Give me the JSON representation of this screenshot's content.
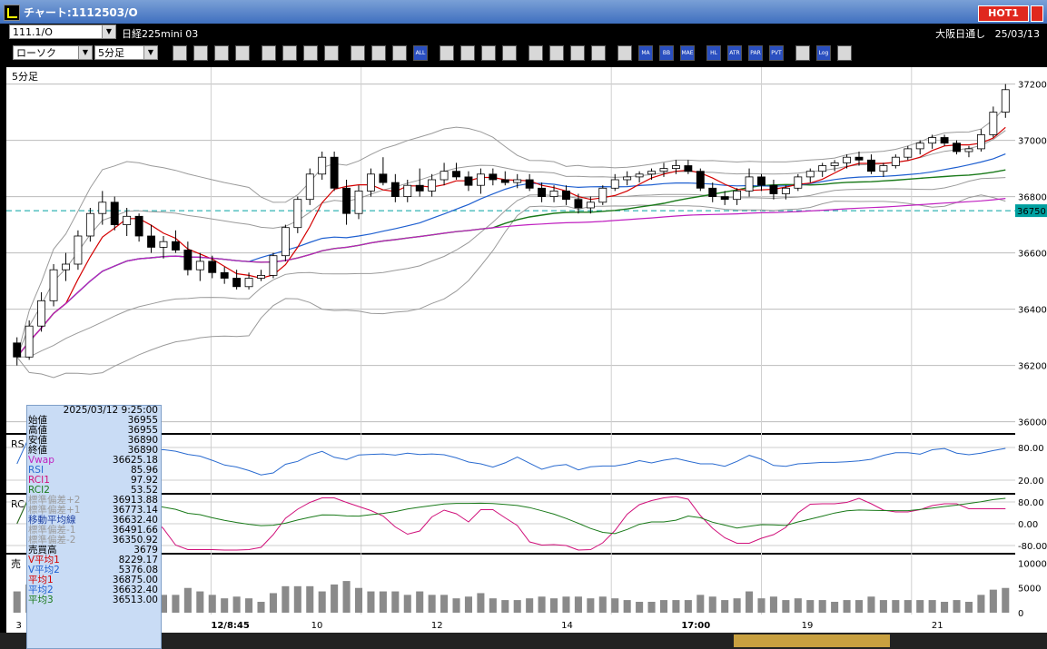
{
  "window": {
    "title": "チャート:1112503/O",
    "hot_label": "HOT1"
  },
  "header": {
    "symbol_code": "111.1/O",
    "symbol_name": "日経225mini 03",
    "market": "大阪日通し",
    "date": "25/03/13",
    "chart_type": "ローソク",
    "interval": "5分足"
  },
  "toolbar": {
    "buttons": [
      {
        "icon": "zoom-icon",
        "label": ""
      },
      {
        "icon": "crosshair-icon",
        "label": ""
      },
      {
        "icon": "pen-icon",
        "label": ""
      },
      {
        "icon": "line-tool-icon",
        "label": ""
      },
      {
        "icon": "cursor-icon",
        "label": ""
      },
      {
        "icon": "undo-icon",
        "label": ""
      },
      {
        "icon": "document-icon",
        "label": ""
      },
      {
        "icon": "trash-icon",
        "label": ""
      },
      {
        "icon": "candle-icon",
        "label": ""
      },
      {
        "icon": "candle-icon",
        "label": ""
      },
      {
        "icon": "candle-icon",
        "label": ""
      },
      {
        "icon": "all-icon",
        "label": "ALL"
      },
      {
        "icon": "gear-icon",
        "label": ""
      },
      {
        "icon": "wrench-icon",
        "label": ""
      },
      {
        "icon": "color-icon",
        "label": ""
      },
      {
        "icon": "print-icon",
        "label": ""
      },
      {
        "icon": "search-icon",
        "label": ""
      },
      {
        "icon": "chart-icon",
        "label": ""
      },
      {
        "icon": "fork-icon",
        "label": ""
      },
      {
        "icon": "info-icon",
        "label": ""
      },
      {
        "icon": "indicator-icon",
        "label": ""
      },
      {
        "icon": "indicator-icon",
        "label": "MA"
      },
      {
        "icon": "indicator-icon",
        "label": "BB"
      },
      {
        "icon": "indicator-icon",
        "label": "MAE"
      },
      {
        "icon": "indicator-icon",
        "label": "HL"
      },
      {
        "icon": "indicator-icon",
        "label": "ATR"
      },
      {
        "icon": "indicator-icon",
        "label": "PAR"
      },
      {
        "icon": "indicator-icon",
        "label": "PVT"
      },
      {
        "icon": "indicator-icon",
        "label": ""
      },
      {
        "icon": "log-icon",
        "label": "Log"
      },
      {
        "icon": "export-icon",
        "label": ""
      }
    ]
  },
  "colors": {
    "up": "#ffffff",
    "down": "#000000",
    "ma_short": "#d40000",
    "ma_mid": "#1e5fd0",
    "ma_long": "#1a7a1a",
    "vwap": "#c020c0",
    "bb": "#9a9a9a",
    "rsi": "#2a6bd0",
    "rci1": "#d0107a",
    "rci2": "#1a7a1a",
    "volume": "#8a8a8a",
    "current_price": "#00a0a0"
  },
  "chart_data": {
    "type": "candlestick",
    "main_label": "5分足",
    "price_axis": [
      "37200",
      "37000",
      "36800",
      "36600",
      "36400",
      "36200",
      "36000"
    ],
    "ylim": [
      35960,
      37260
    ],
    "current_price": "36750",
    "time_labels": [
      "3",
      "12/8:45",
      "10",
      "12",
      "14",
      "17:00",
      "19",
      "21"
    ],
    "rsi": {
      "label": "RS",
      "axis": [
        "80.00",
        "20.00"
      ]
    },
    "rci": {
      "label": "RC",
      "axis": [
        "80.00",
        "0.00",
        "-80.00"
      ]
    },
    "volume": {
      "label": "売",
      "axis": [
        "10000",
        "5000",
        "0"
      ]
    },
    "candles": [
      [
        36280,
        36300,
        36200,
        36230
      ],
      [
        36230,
        36360,
        36220,
        36340
      ],
      [
        36340,
        36460,
        36320,
        36430
      ],
      [
        36430,
        36560,
        36410,
        36540
      ],
      [
        36540,
        36600,
        36500,
        36560
      ],
      [
        36560,
        36680,
        36540,
        36660
      ],
      [
        36660,
        36760,
        36640,
        36740
      ],
      [
        36740,
        36820,
        36700,
        36780
      ],
      [
        36780,
        36800,
        36680,
        36700
      ],
      [
        36700,
        36760,
        36660,
        36730
      ],
      [
        36730,
        36740,
        36640,
        36660
      ],
      [
        36660,
        36700,
        36600,
        36620
      ],
      [
        36620,
        36660,
        36580,
        36640
      ],
      [
        36640,
        36680,
        36600,
        36610
      ],
      [
        36610,
        36640,
        36520,
        36540
      ],
      [
        36540,
        36600,
        36500,
        36570
      ],
      [
        36570,
        36590,
        36510,
        36530
      ],
      [
        36530,
        36550,
        36490,
        36510
      ],
      [
        36510,
        36540,
        36470,
        36480
      ],
      [
        36480,
        36530,
        36470,
        36510
      ],
      [
        36510,
        36540,
        36500,
        36520
      ],
      [
        36520,
        36600,
        36510,
        36590
      ],
      [
        36590,
        36700,
        36570,
        36690
      ],
      [
        36690,
        36800,
        36670,
        36790
      ],
      [
        36790,
        36900,
        36770,
        36880
      ],
      [
        36880,
        36960,
        36860,
        36940
      ],
      [
        36940,
        36960,
        36820,
        36830
      ],
      [
        36830,
        36860,
        36700,
        36740
      ],
      [
        36740,
        36840,
        36720,
        36820
      ],
      [
        36820,
        36900,
        36800,
        36880
      ],
      [
        36880,
        36940,
        36840,
        36850
      ],
      [
        36850,
        36880,
        36780,
        36800
      ],
      [
        36800,
        36860,
        36780,
        36840
      ],
      [
        36840,
        36900,
        36800,
        36820
      ],
      [
        36820,
        36880,
        36800,
        36860
      ],
      [
        36860,
        36920,
        36840,
        36890
      ],
      [
        36890,
        36920,
        36860,
        36870
      ],
      [
        36870,
        36890,
        36820,
        36840
      ],
      [
        36840,
        36900,
        36810,
        36880
      ],
      [
        36880,
        36900,
        36840,
        36860
      ],
      [
        36860,
        36890,
        36840,
        36850
      ],
      [
        36850,
        36880,
        36830,
        36860
      ],
      [
        36860,
        36880,
        36820,
        36830
      ],
      [
        36830,
        36850,
        36780,
        36800
      ],
      [
        36800,
        36840,
        36780,
        36820
      ],
      [
        36820,
        36840,
        36770,
        36790
      ],
      [
        36790,
        36810,
        36740,
        36760
      ],
      [
        36760,
        36800,
        36740,
        36780
      ],
      [
        36780,
        36840,
        36770,
        36830
      ],
      [
        36830,
        36880,
        36820,
        36860
      ],
      [
        36860,
        36890,
        36840,
        36870
      ],
      [
        36870,
        36890,
        36850,
        36880
      ],
      [
        36880,
        36900,
        36860,
        36890
      ],
      [
        36890,
        36920,
        36870,
        36900
      ],
      [
        36900,
        36930,
        36880,
        36910
      ],
      [
        36910,
        36930,
        36880,
        36890
      ],
      [
        36890,
        36900,
        36820,
        36830
      ],
      [
        36830,
        36850,
        36780,
        36800
      ],
      [
        36800,
        36820,
        36770,
        36790
      ],
      [
        36790,
        36830,
        36770,
        36820
      ],
      [
        36820,
        36900,
        36800,
        36870
      ],
      [
        36870,
        36880,
        36820,
        36840
      ],
      [
        36840,
        36860,
        36790,
        36810
      ],
      [
        36810,
        36840,
        36790,
        36830
      ],
      [
        36830,
        36880,
        36820,
        36870
      ],
      [
        36870,
        36900,
        36850,
        36890
      ],
      [
        36890,
        36920,
        36870,
        36910
      ],
      [
        36910,
        36930,
        36890,
        36920
      ],
      [
        36920,
        36950,
        36900,
        36940
      ],
      [
        36940,
        36960,
        36910,
        36930
      ],
      [
        36930,
        36950,
        36880,
        36890
      ],
      [
        36890,
        36920,
        36870,
        36910
      ],
      [
        36910,
        36950,
        36900,
        36940
      ],
      [
        36940,
        36980,
        36930,
        36970
      ],
      [
        36970,
        37000,
        36950,
        36990
      ],
      [
        36990,
        37020,
        36970,
        37010
      ],
      [
        37010,
        37020,
        36980,
        36990
      ],
      [
        36990,
        37000,
        36950,
        36960
      ],
      [
        36960,
        36980,
        36940,
        36970
      ],
      [
        36970,
        37040,
        36960,
        37020
      ],
      [
        37020,
        37120,
        37010,
        37100
      ],
      [
        37100,
        37200,
        37080,
        37180
      ]
    ],
    "info_panel": {
      "datetime": "2025/03/12 9:25:00",
      "rows": [
        {
          "label": "始値",
          "value": "36955",
          "color": "#000000"
        },
        {
          "label": "高値",
          "value": "36955",
          "color": "#000000"
        },
        {
          "label": "安値",
          "value": "36890",
          "color": "#000000"
        },
        {
          "label": "終値",
          "value": "36890",
          "color": "#000000"
        },
        {
          "label": "Vwap",
          "value": "36625.18",
          "color": "#c020c0"
        },
        {
          "label": "RSI",
          "value": "85.96",
          "color": "#2a6bd0"
        },
        {
          "label": "RCI1",
          "value": "97.92",
          "color": "#d0107a"
        },
        {
          "label": "RCI2",
          "value": "53.52",
          "color": "#1a7a1a"
        },
        {
          "label": "標準偏差+2",
          "value": "36913.88",
          "color": "#9a9a9a"
        },
        {
          "label": "標準偏差+1",
          "value": "36773.14",
          "color": "#9a9a9a"
        },
        {
          "label": "移動平均線",
          "value": "36632.40",
          "color": "#1e3fa0"
        },
        {
          "label": "標準偏差-1",
          "value": "36491.66",
          "color": "#9a9a9a"
        },
        {
          "label": "標準偏差-2",
          "value": "36350.92",
          "color": "#9a9a9a"
        },
        {
          "label": "売買高",
          "value": "3679",
          "color": "#000000"
        },
        {
          "label": "V平均1",
          "value": "8229.17",
          "color": "#d40000"
        },
        {
          "label": "V平均2",
          "value": "5376.08",
          "color": "#1e5fd0"
        },
        {
          "label": "平均1",
          "value": "36875.00",
          "color": "#d40000"
        },
        {
          "label": "平均2",
          "value": "36632.40",
          "color": "#1e5fd0"
        },
        {
          "label": "平均3",
          "value": "36513.00",
          "color": "#1a7a1a"
        }
      ]
    }
  }
}
